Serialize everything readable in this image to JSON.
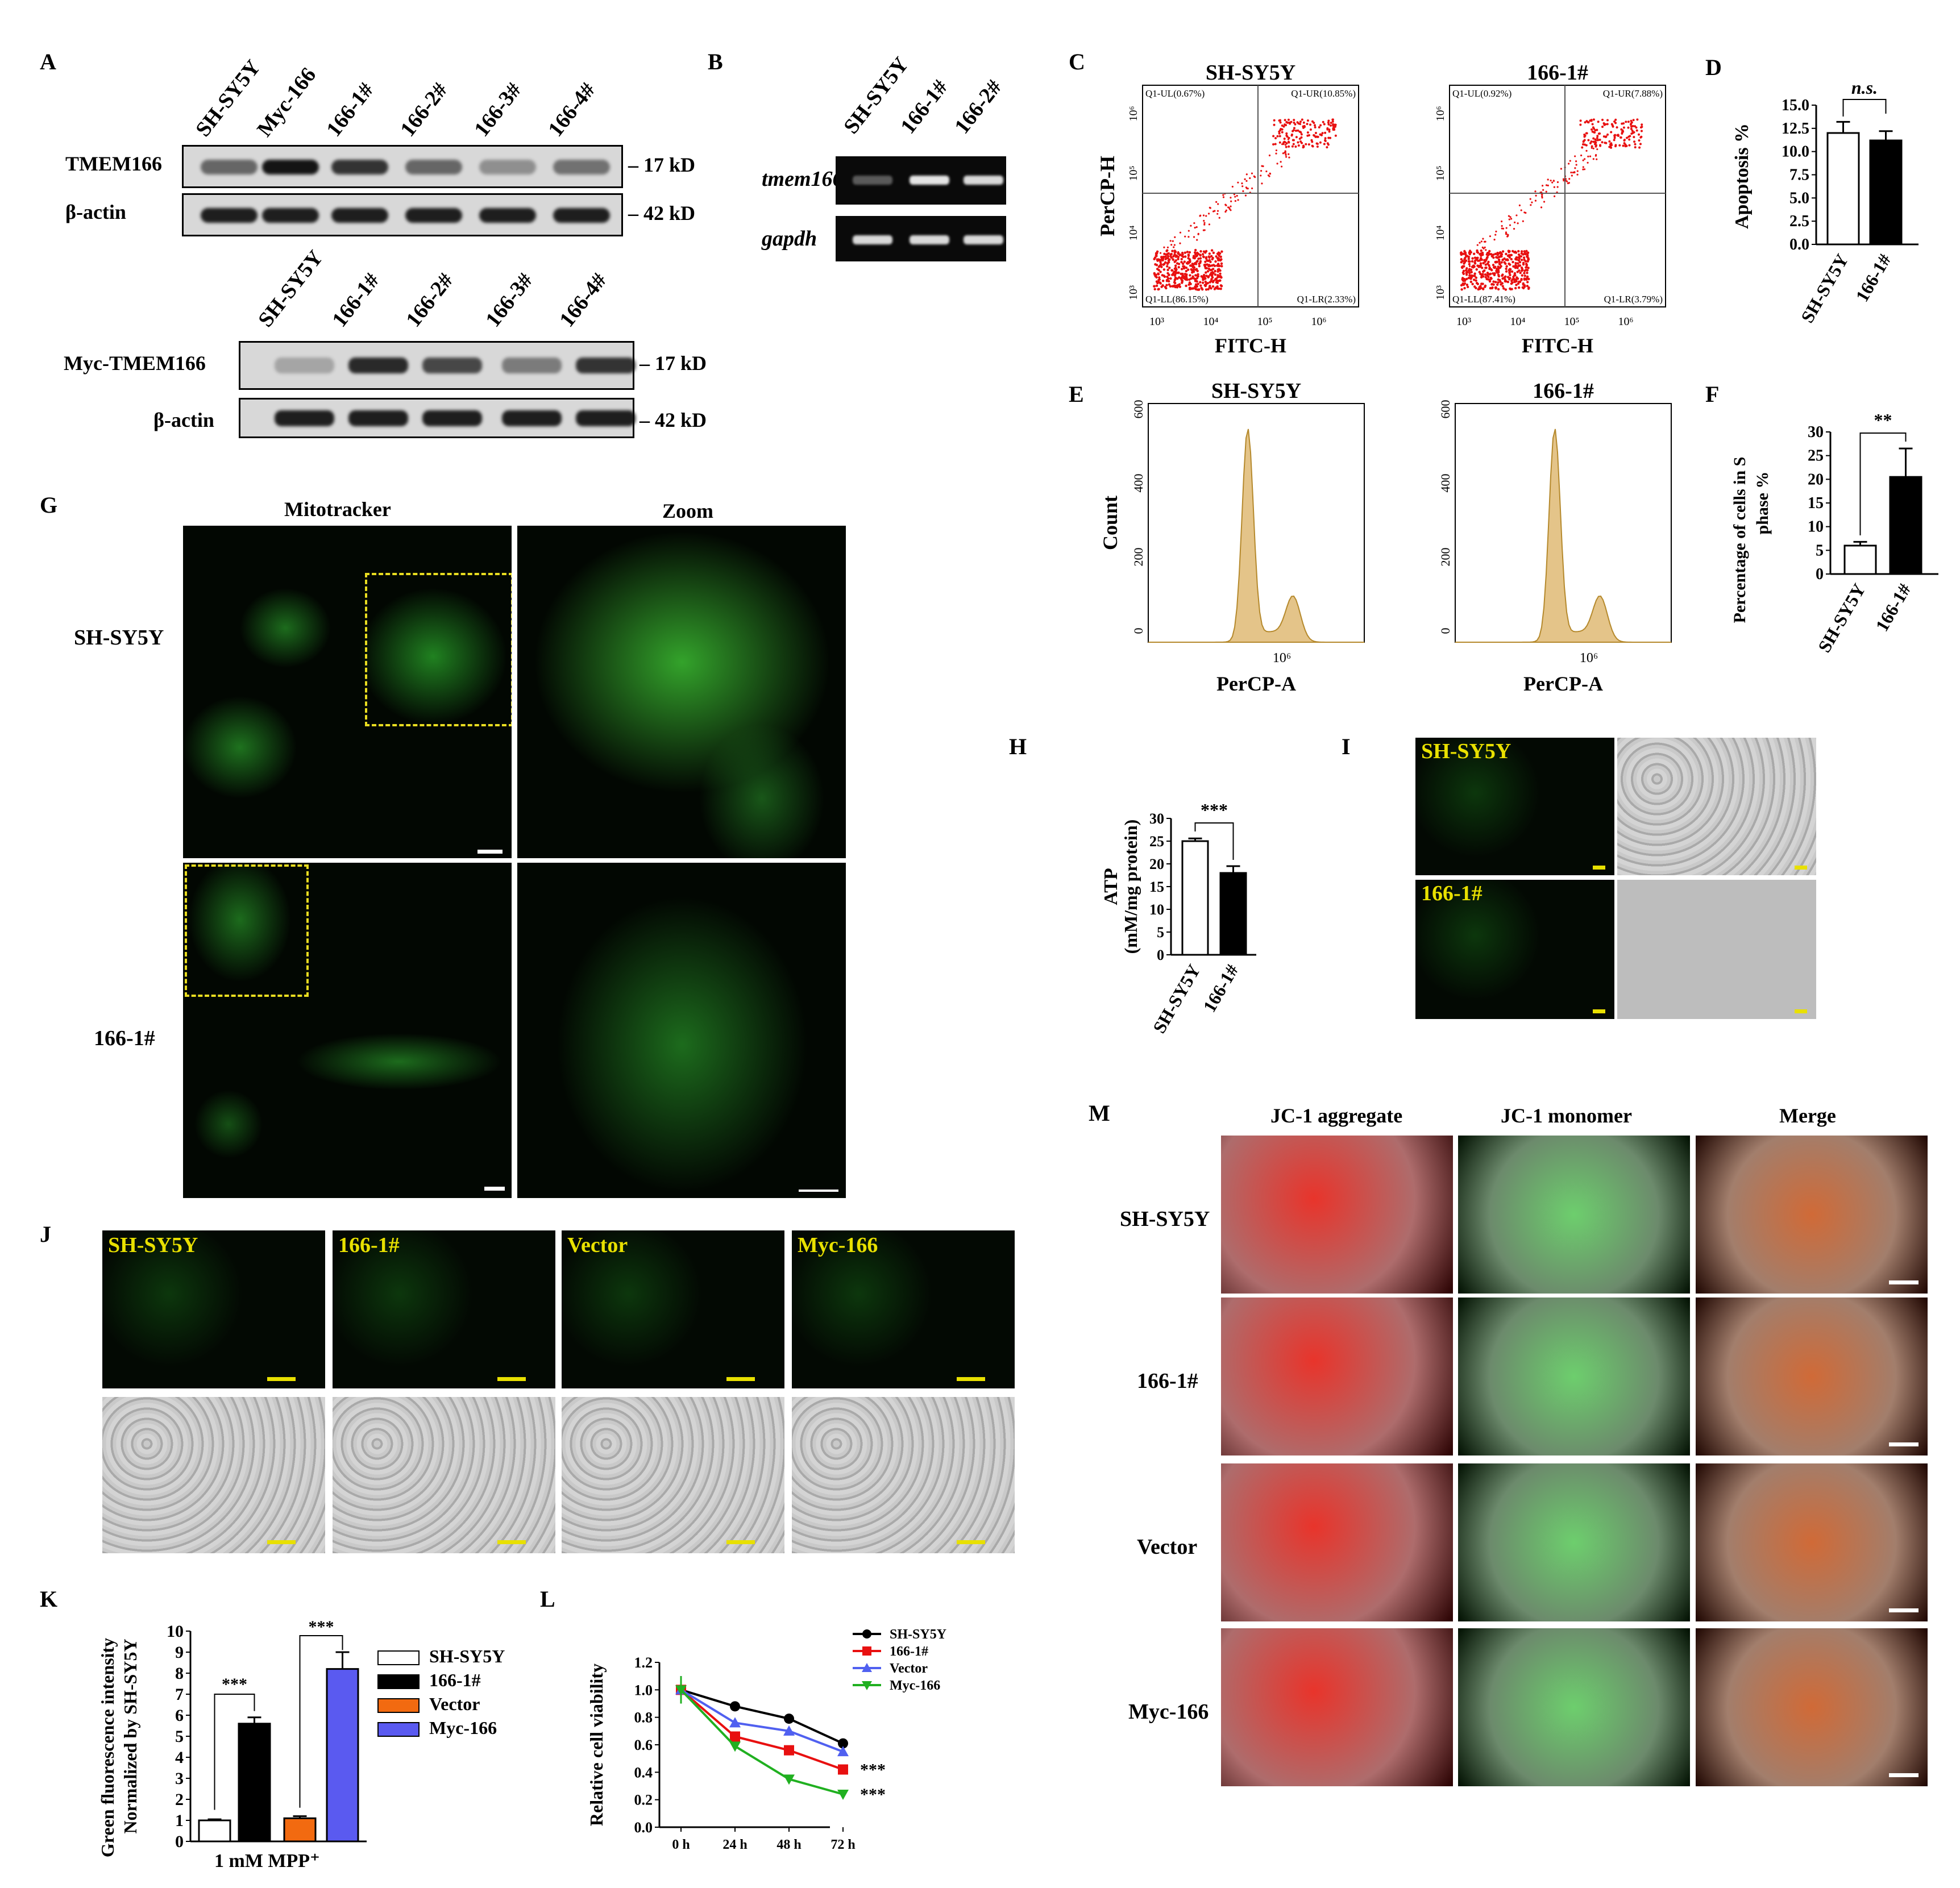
{
  "panels": {
    "A": {
      "letter": "A",
      "lanes_top": [
        "SH-SY5Y",
        "Myc-166",
        "166-1#",
        "166-2#",
        "166-3#",
        "166-4#"
      ],
      "rows_top": [
        {
          "label": "TMEM166",
          "size": "17 kD"
        },
        {
          "label": "β-actin",
          "size": "42 kD"
        }
      ],
      "lanes_bottom": [
        "SH-SY5Y",
        "166-1#",
        "166-2#",
        "166-3#",
        "166-4#"
      ],
      "rows_bottom": [
        {
          "label": "Myc-TMEM166",
          "size": "17 kD"
        },
        {
          "label": "β-actin",
          "size": "42 kD"
        }
      ]
    },
    "B": {
      "letter": "B",
      "lanes": [
        "SH-SY5Y",
        "166-1#",
        "166-2#"
      ],
      "rows": [
        "tmem166",
        "gapdh"
      ]
    },
    "C": {
      "letter": "C",
      "plots": [
        {
          "title": "SH-SY5Y",
          "q_ul": "Q1-UL(0.67%)",
          "q_ur": "Q1-UR(10.85%)",
          "q_ll": "Q1-LL(86.15%)",
          "q_lr": "Q1-LR(2.33%)"
        },
        {
          "title": "166-1#",
          "q_ul": "Q1-UL(0.92%)",
          "q_ur": "Q1-UR(7.88%)",
          "q_ll": "Q1-LL(87.41%)",
          "q_lr": "Q1-LR(3.79%)"
        }
      ],
      "ylabel": "PerCP-H",
      "xlabel": "FITC-H",
      "ticks": [
        "10³",
        "10⁴",
        "10⁵",
        "10⁶"
      ]
    },
    "D": {
      "letter": "D",
      "sig": "n.s.",
      "ylabel": "Apoptosis %"
    },
    "E": {
      "letter": "E",
      "titles": [
        "SH-SY5Y",
        "166-1#"
      ],
      "ylabel": "Count",
      "xlabel": "PerCP-A",
      "yticks": [
        "0",
        "200",
        "400",
        "600"
      ],
      "xtick": "10⁶"
    },
    "F": {
      "letter": "F",
      "sig": "**",
      "ylabel1": "Percentage of cells in S",
      "ylabel2": "phase %"
    },
    "G": {
      "letter": "G",
      "col1": "Mitotracker",
      "col2": "Zoom",
      "rows": [
        "SH-SY5Y",
        "166-1#"
      ]
    },
    "H": {
      "letter": "H",
      "sig": "***",
      "ylabel1": "ATP",
      "ylabel2": "(mM/mg protein)"
    },
    "I": {
      "letter": "I",
      "labels": [
        "SH-SY5Y",
        "166-1#"
      ]
    },
    "J": {
      "letter": "J",
      "labels": [
        "SH-SY5Y",
        "166-1#",
        "Vector",
        "Myc-166"
      ]
    },
    "K": {
      "letter": "K",
      "ylabel1": "Green fluorescence intensity",
      "ylabel2": "Normalized by SH-SY5Y",
      "xlabel": "1 mM MPP⁺",
      "sig": "***"
    },
    "L": {
      "letter": "L",
      "ylabel": "Relative cell viability",
      "sig": "***"
    },
    "M": {
      "letter": "M",
      "cols": [
        "JC-1 aggregate",
        "JC-1 monomer",
        "Merge"
      ],
      "rows": [
        "SH-SY5Y",
        "166-1#",
        "Vector",
        "Myc-166"
      ]
    }
  },
  "chart_data": [
    {
      "id": "D",
      "type": "bar",
      "categories": [
        "SH-SY5Y",
        "166-1#"
      ],
      "values": [
        12.0,
        11.2
      ],
      "errors": [
        1.2,
        1.0
      ],
      "ylabel": "Apoptosis %",
      "ylim": [
        0,
        15
      ],
      "yticks": [
        0.0,
        2.5,
        5.0,
        7.5,
        10.0,
        12.5,
        15.0
      ],
      "colors": [
        "#ffffff",
        "#000000"
      ],
      "annotation": "n.s."
    },
    {
      "id": "F",
      "type": "bar",
      "categories": [
        "SH-SY5Y",
        "166-1#"
      ],
      "values": [
        6.0,
        20.5
      ],
      "errors": [
        0.8,
        6.0
      ],
      "ylabel": "Percentage of cells in S phase %",
      "ylim": [
        0,
        30
      ],
      "yticks": [
        0,
        5,
        10,
        15,
        20,
        25,
        30
      ],
      "colors": [
        "#ffffff",
        "#000000"
      ],
      "annotation": "**"
    },
    {
      "id": "H",
      "type": "bar",
      "categories": [
        "SH-SY5Y",
        "166-1#"
      ],
      "values": [
        25.0,
        18.0
      ],
      "errors": [
        0.6,
        1.5
      ],
      "ylabel": "ATP (mM/mg protein)",
      "ylim": [
        0,
        30
      ],
      "yticks": [
        0,
        5,
        10,
        15,
        20,
        25,
        30
      ],
      "colors": [
        "#ffffff",
        "#000000"
      ],
      "annotation": "***"
    },
    {
      "id": "K",
      "type": "bar",
      "categories": [
        "SH-SY5Y",
        "166-1#",
        "Vector",
        "Myc-166"
      ],
      "values": [
        1.0,
        5.6,
        1.1,
        8.2
      ],
      "errors": [
        0.05,
        0.3,
        0.1,
        0.8
      ],
      "ylabel": "Green fluorescence intensity Normalized by SH-SY5Y",
      "xlabel": "1 mM MPP⁺",
      "ylim": [
        0,
        10
      ],
      "yticks": [
        0,
        1,
        2,
        3,
        4,
        5,
        6,
        7,
        8,
        9,
        10
      ],
      "colors": [
        "#ffffff",
        "#000000",
        "#f26a10",
        "#5a5af0"
      ],
      "legend": [
        "SH-SY5Y",
        "166-1#",
        "Vector",
        "Myc-166"
      ],
      "annotation": "***"
    },
    {
      "id": "L",
      "type": "line",
      "x": [
        "0 h",
        "24 h",
        "48 h",
        "72 h"
      ],
      "series": [
        {
          "name": "SH-SY5Y",
          "values": [
            1.0,
            0.88,
            0.79,
            0.61
          ],
          "color": "#000000",
          "marker": "circle"
        },
        {
          "name": "166-1#",
          "values": [
            1.0,
            0.66,
            0.56,
            0.42
          ],
          "color": "#e81010",
          "marker": "square"
        },
        {
          "name": "Vector",
          "values": [
            1.0,
            0.76,
            0.7,
            0.55
          ],
          "color": "#5060f0",
          "marker": "triangle-up"
        },
        {
          "name": "Myc-166",
          "values": [
            1.0,
            0.59,
            0.35,
            0.24
          ],
          "color": "#20b020",
          "marker": "triangle-down"
        }
      ],
      "ylabel": "Relative cell viability",
      "ylim": [
        0,
        1.2
      ],
      "yticks": [
        0.0,
        0.2,
        0.4,
        0.6,
        0.8,
        1.0,
        1.2
      ],
      "annotation": "***"
    }
  ]
}
